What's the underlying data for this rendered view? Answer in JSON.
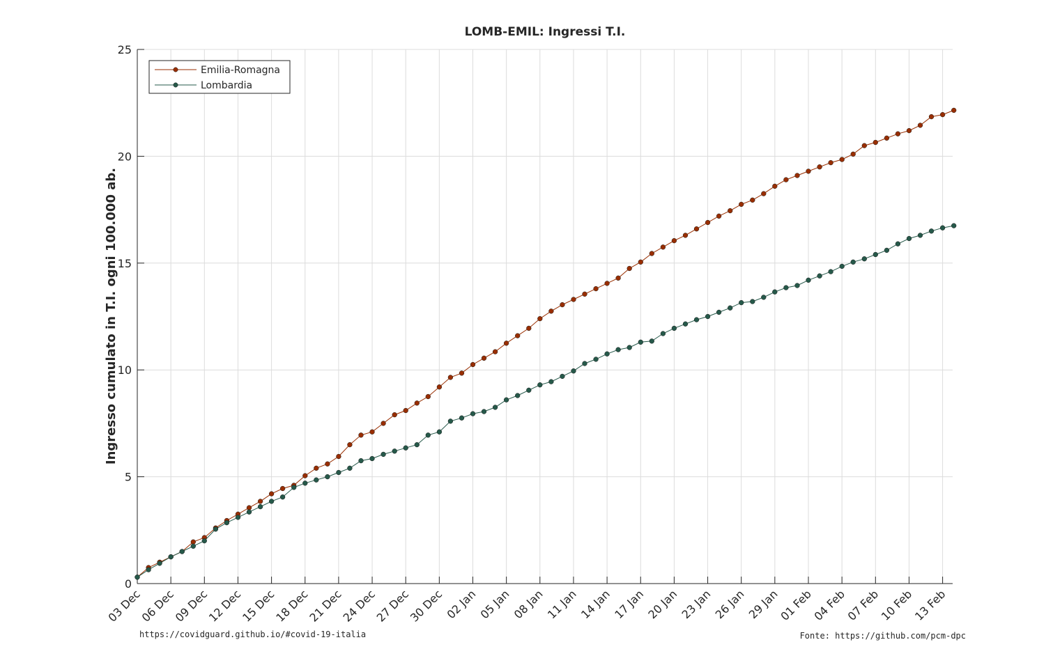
{
  "chart_data": {
    "type": "line",
    "title": "LOMB-EMIL: Ingressi T.I.",
    "xlabel": "",
    "ylabel": "Ingresso cumulato in T.I. ogni 100.000 ab.",
    "ylim": [
      0,
      25
    ],
    "yticks": [
      "0",
      "5",
      "10",
      "15",
      "20",
      "25"
    ],
    "x_start": "03 Dec",
    "xticks": [
      "03 Dec",
      "06 Dec",
      "09 Dec",
      "12 Dec",
      "15 Dec",
      "18 Dec",
      "21 Dec",
      "24 Dec",
      "27 Dec",
      "30 Dec",
      "02 Jan",
      "05 Jan",
      "08 Jan",
      "11 Jan",
      "14 Jan",
      "17 Jan",
      "20 Jan",
      "23 Jan",
      "26 Jan",
      "29 Jan",
      "01 Feb",
      "04 Feb",
      "07 Feb",
      "10 Feb",
      "13 Feb"
    ],
    "grid": true,
    "legend_position": "top-left",
    "series": [
      {
        "name": "Emilia-Romagna",
        "color": "#992e00",
        "values": [
          0.3,
          0.75,
          1.0,
          1.25,
          1.5,
          1.95,
          2.15,
          2.6,
          2.95,
          3.25,
          3.55,
          3.85,
          4.2,
          4.45,
          4.6,
          5.05,
          5.4,
          5.6,
          5.95,
          6.5,
          6.95,
          7.1,
          7.5,
          7.9,
          8.1,
          8.45,
          8.75,
          9.2,
          9.65,
          9.85,
          10.25,
          10.55,
          10.85,
          11.25,
          11.6,
          11.95,
          12.4,
          12.75,
          13.05,
          13.3,
          13.55,
          13.8,
          14.05,
          14.3,
          14.75,
          15.05,
          15.45,
          15.75,
          16.05,
          16.3,
          16.6,
          16.9,
          17.2,
          17.45,
          17.75,
          17.95,
          18.25,
          18.6,
          18.9,
          19.1,
          19.3,
          19.5,
          19.7,
          19.85,
          20.1,
          20.5,
          20.65,
          20.85,
          21.05,
          21.2,
          21.45,
          21.85,
          21.95,
          22.15
        ]
      },
      {
        "name": "Lombardia",
        "color": "#26594a",
        "values": [
          0.3,
          0.65,
          0.95,
          1.25,
          1.5,
          1.75,
          2.0,
          2.55,
          2.85,
          3.1,
          3.35,
          3.6,
          3.85,
          4.05,
          4.5,
          4.7,
          4.85,
          5.0,
          5.2,
          5.4,
          5.75,
          5.85,
          6.05,
          6.2,
          6.35,
          6.5,
          6.95,
          7.1,
          7.6,
          7.75,
          7.95,
          8.05,
          8.25,
          8.6,
          8.8,
          9.05,
          9.3,
          9.45,
          9.7,
          9.95,
          10.3,
          10.5,
          10.75,
          10.95,
          11.05,
          11.3,
          11.35,
          11.7,
          11.95,
          12.15,
          12.35,
          12.5,
          12.7,
          12.9,
          13.15,
          13.2,
          13.4,
          13.65,
          13.85,
          13.95,
          14.2,
          14.4,
          14.6,
          14.85,
          15.05,
          15.2,
          15.4,
          15.6,
          15.9,
          16.15,
          16.3,
          16.5,
          16.65,
          16.75
        ]
      }
    ]
  },
  "footer": {
    "left": "https://covidguard.github.io/#covid-19-italia",
    "right": "Fonte: https://github.com/pcm-dpc"
  }
}
